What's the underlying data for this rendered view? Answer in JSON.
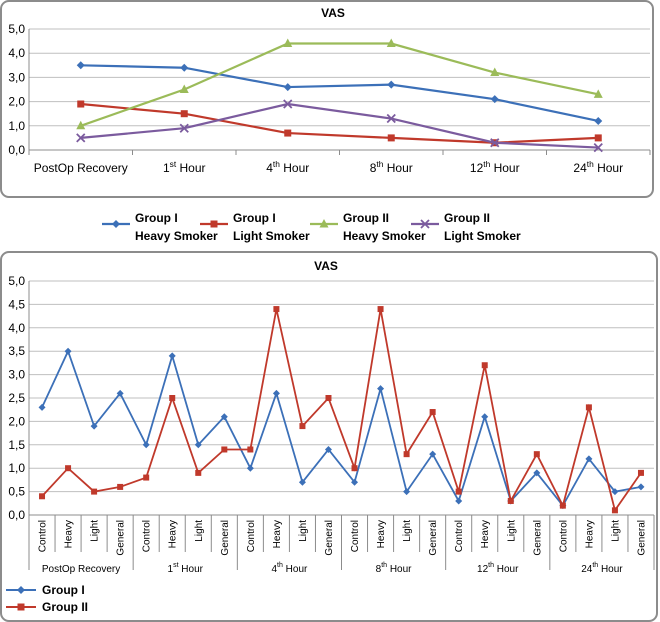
{
  "chart_data": [
    {
      "type": "line",
      "title": "VAS",
      "categories": [
        "PostOp Recovery",
        "1st Hour",
        "4th Hour",
        "8th Hour",
        "12th Hour",
        "24th Hour"
      ],
      "category_parts": [
        {
          "base": "PostOp Recovery",
          "sup": "",
          "tail": ""
        },
        {
          "base": "1",
          "sup": "st",
          "tail": " Hour"
        },
        {
          "base": "4",
          "sup": "th",
          "tail": " Hour"
        },
        {
          "base": "8",
          "sup": "th",
          "tail": " Hour"
        },
        {
          "base": "12",
          "sup": "th",
          "tail": " Hour"
        },
        {
          "base": "24",
          "sup": "th",
          "tail": " Hour"
        }
      ],
      "ylim": [
        0,
        5
      ],
      "yticks": [
        "0,0",
        "1,0",
        "2,0",
        "3,0",
        "4,0",
        "5,0"
      ],
      "grid": "horizontal",
      "legend_position": "bottom",
      "series": [
        {
          "name_line1": "Group I",
          "name_line2": "Heavy Smoker",
          "color": "#3C70B8",
          "marker": "diamond",
          "values": [
            3.5,
            3.4,
            2.6,
            2.7,
            2.1,
            1.2
          ]
        },
        {
          "name_line1": "Group I",
          "name_line2": "Light Smoker",
          "color": "#C0392B",
          "marker": "square",
          "values": [
            1.9,
            1.5,
            0.7,
            0.5,
            0.3,
            0.5
          ]
        },
        {
          "name_line1": "Group II",
          "name_line2": "Heavy Smoker",
          "color": "#9BBB59",
          "marker": "triangle",
          "values": [
            1.0,
            2.5,
            4.4,
            4.4,
            3.2,
            2.3
          ]
        },
        {
          "name_line1": "Group II",
          "name_line2": "Light Smoker",
          "color": "#7B5B9E",
          "marker": "x",
          "values": [
            0.5,
            0.9,
            1.9,
            1.3,
            0.3,
            0.1
          ]
        }
      ]
    },
    {
      "type": "line",
      "title": "VAS",
      "subcategories": [
        "Control",
        "Heavy",
        "Light",
        "General"
      ],
      "groups": [
        "PostOp Recovery",
        "1st Hour",
        "4th Hour",
        "8th Hour",
        "12th Hour",
        "24th Hour"
      ],
      "group_parts": [
        {
          "base": "PostOp Recovery",
          "sup": "",
          "tail": ""
        },
        {
          "base": "1",
          "sup": "st",
          "tail": " Hour"
        },
        {
          "base": "4",
          "sup": "th",
          "tail": " Hour"
        },
        {
          "base": "8",
          "sup": "th",
          "tail": " Hour"
        },
        {
          "base": "12",
          "sup": "th",
          "tail": " Hour"
        },
        {
          "base": "24",
          "sup": "th",
          "tail": " Hour"
        }
      ],
      "ylim": [
        0,
        5
      ],
      "yticks": [
        "0,0",
        "0,5",
        "1,0",
        "1,5",
        "2,0",
        "2,5",
        "3,0",
        "3,5",
        "4,0",
        "4,5",
        "5,0"
      ],
      "grid": "horizontal",
      "legend_position": "bottom-left",
      "series": [
        {
          "name": "Group I",
          "color": "#3C70B8",
          "marker": "diamond",
          "values": [
            2.3,
            3.5,
            1.9,
            2.6,
            1.5,
            3.4,
            1.5,
            2.1,
            1.0,
            2.6,
            0.7,
            1.4,
            0.7,
            2.7,
            0.5,
            1.3,
            0.3,
            2.1,
            0.3,
            0.9,
            0.2,
            1.2,
            0.5,
            0.6
          ]
        },
        {
          "name": "Group II",
          "color": "#C0392B",
          "marker": "square",
          "values": [
            0.4,
            1.0,
            0.5,
            0.6,
            0.8,
            2.5,
            0.9,
            1.4,
            1.4,
            4.4,
            1.9,
            2.5,
            1.0,
            4.4,
            1.3,
            2.2,
            0.5,
            3.2,
            0.3,
            1.3,
            0.2,
            2.3,
            0.1,
            0.9
          ]
        }
      ]
    }
  ]
}
